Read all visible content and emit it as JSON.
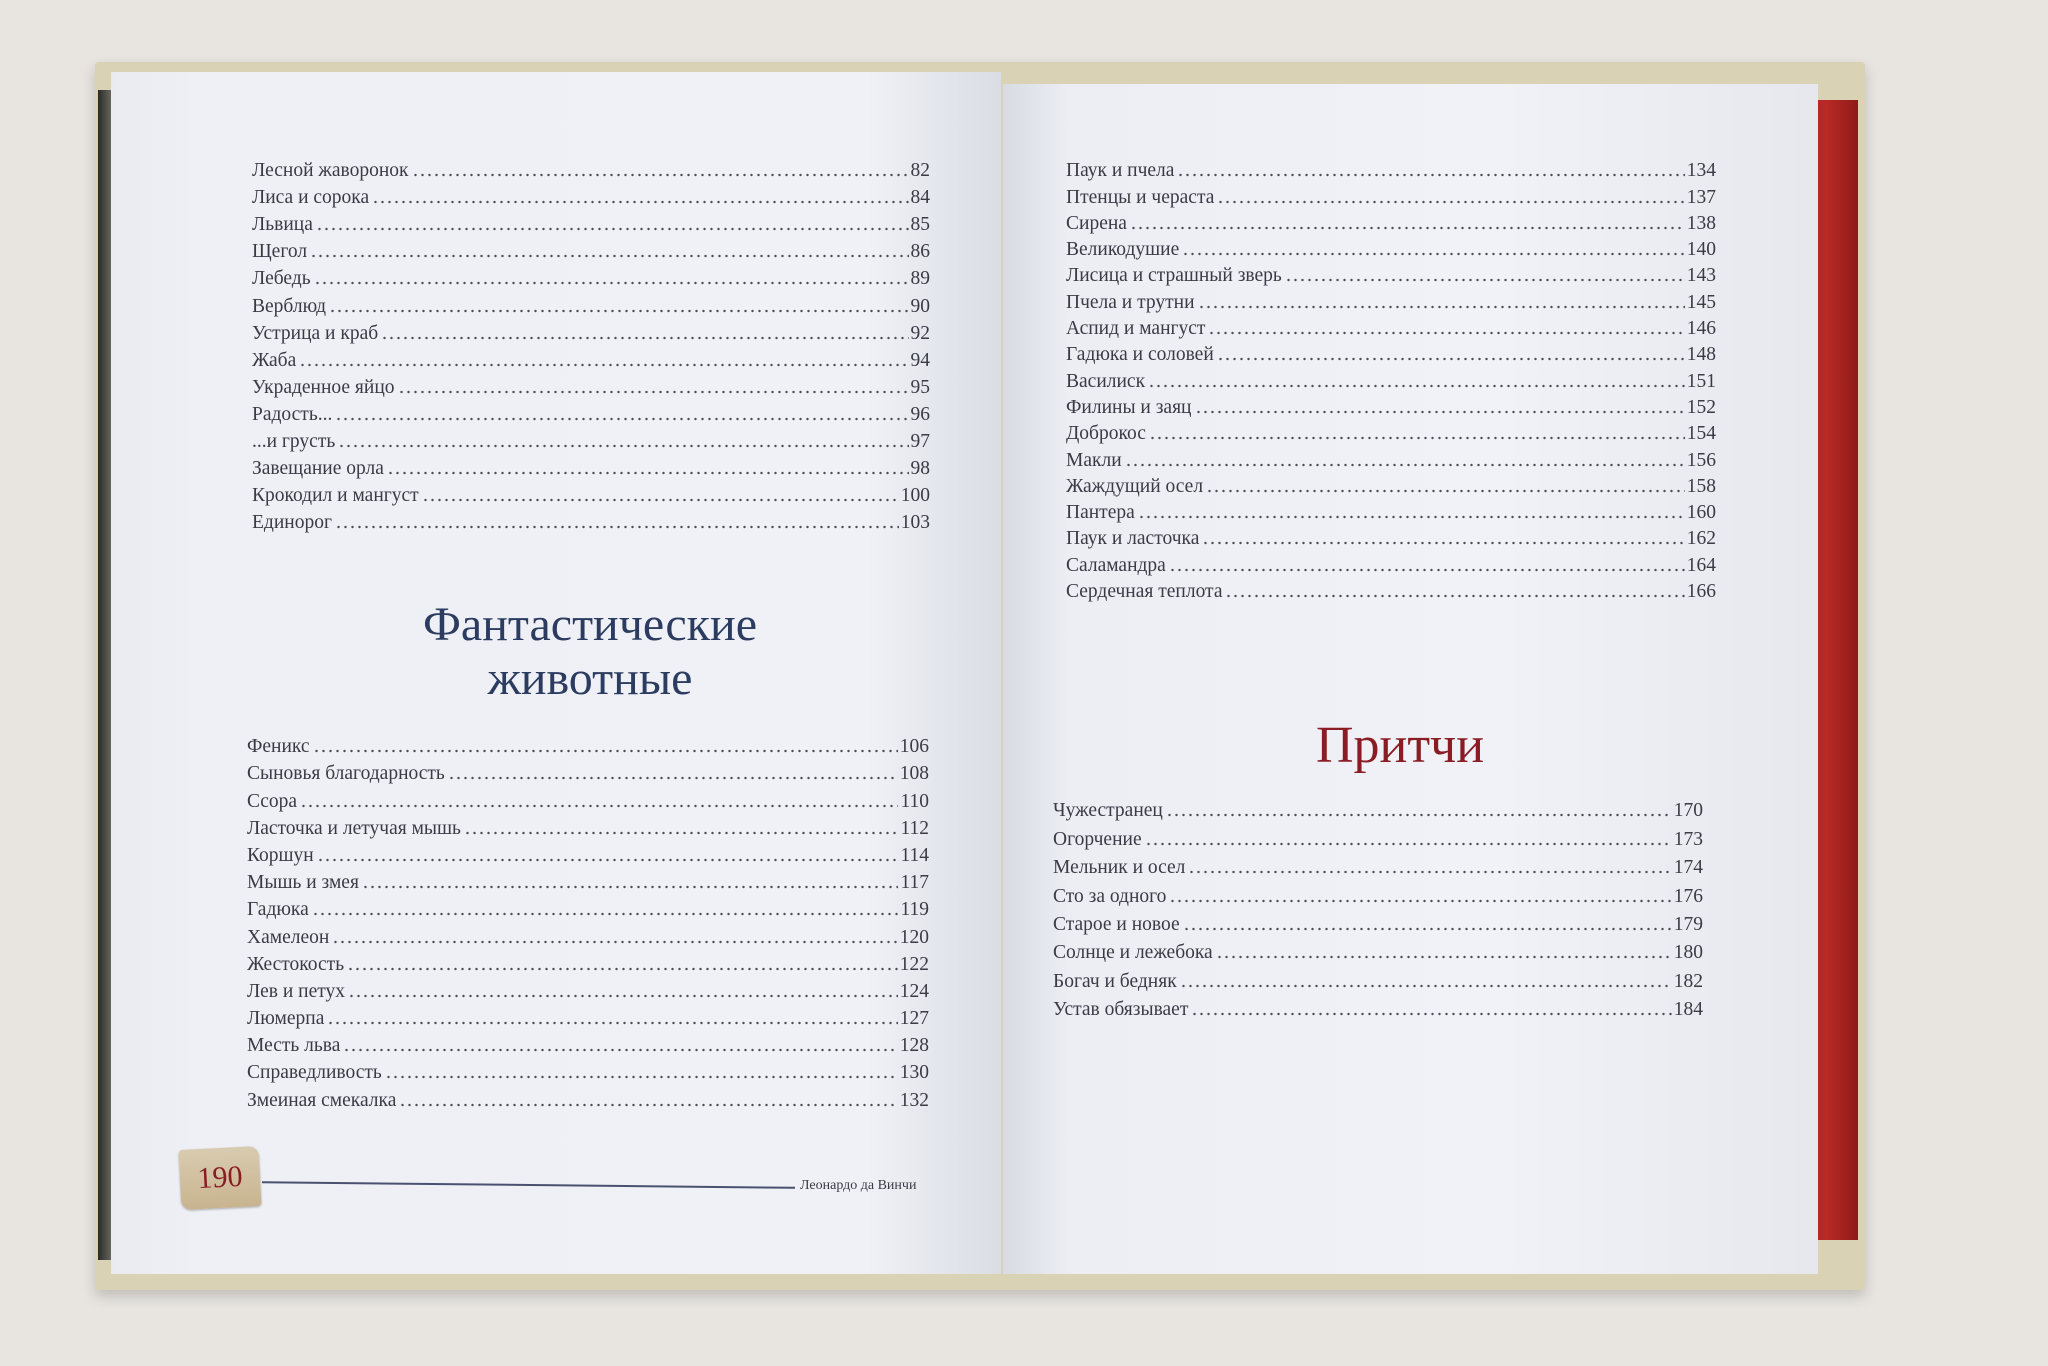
{
  "left_page": {
    "entries_top": [
      {
        "title": "Лесной жаворонок",
        "page": "82"
      },
      {
        "title": "Лиса и сорока",
        "page": "84"
      },
      {
        "title": "Львица",
        "page": "85"
      },
      {
        "title": "Щегол",
        "page": "86"
      },
      {
        "title": "Лебедь",
        "page": "89"
      },
      {
        "title": "Верблюд",
        "page": "90"
      },
      {
        "title": "Устрица и краб",
        "page": "92"
      },
      {
        "title": "Жаба",
        "page": "94"
      },
      {
        "title": "Украденное яйцо",
        "page": "95"
      },
      {
        "title": "Радость...",
        "page": "96"
      },
      {
        "title": "...и грусть",
        "page": "97"
      },
      {
        "title": "Завещание орла",
        "page": "98"
      },
      {
        "title": "Крокодил и мангуст",
        "page": "100"
      },
      {
        "title": "Единорог",
        "page": "103"
      }
    ],
    "section_heading_line1": "Фантастические",
    "section_heading_line2": "животные",
    "entries_section": [
      {
        "title": "Феникс",
        "page": "106"
      },
      {
        "title": "Сыновья благодарность",
        "page": "108"
      },
      {
        "title": "Ссора",
        "page": "110"
      },
      {
        "title": "Ласточка и летучая мышь",
        "page": "112"
      },
      {
        "title": "Коршун",
        "page": "114"
      },
      {
        "title": "Мышь и змея",
        "page": "117"
      },
      {
        "title": "Гадюка",
        "page": "119"
      },
      {
        "title": "Хамелеон",
        "page": "120"
      },
      {
        "title": "Жестокость",
        "page": "122"
      },
      {
        "title": "Лев и петух",
        "page": "124"
      },
      {
        "title": "Люмерпа",
        "page": "127"
      },
      {
        "title": "Месть льва",
        "page": "128"
      },
      {
        "title": "Справедливость",
        "page": "130"
      },
      {
        "title": "Змеиная смекалка",
        "page": "132"
      }
    ],
    "page_number": "190",
    "running_footer": "Леонардо да Винчи"
  },
  "right_page": {
    "entries_top": [
      {
        "title": "Паук и пчела",
        "page": "134"
      },
      {
        "title": "Птенцы и чераста",
        "page": "137"
      },
      {
        "title": "Сирена",
        "page": "138"
      },
      {
        "title": "Великодушие",
        "page": "140"
      },
      {
        "title": "Лисица и страшный зверь",
        "page": "143"
      },
      {
        "title": "Пчела и трутни",
        "page": "145"
      },
      {
        "title": "Аспид и мангуст",
        "page": "146"
      },
      {
        "title": "Гадюка и соловей",
        "page": "148"
      },
      {
        "title": "Василиск",
        "page": "151"
      },
      {
        "title": "Филины и заяц",
        "page": "152"
      },
      {
        "title": "Доброкос",
        "page": "154"
      },
      {
        "title": "Макли",
        "page": "156"
      },
      {
        "title": "Жаждущий осел",
        "page": "158"
      },
      {
        "title": "Пантера",
        "page": "160"
      },
      {
        "title": "Паук и ласточка",
        "page": "162"
      },
      {
        "title": "Саламандра",
        "page": "164"
      },
      {
        "title": "Сердечная теплота",
        "page": "166"
      }
    ],
    "section_heading": "Притчи",
    "entries_section": [
      {
        "title": "Чужестранец",
        "page": "170"
      },
      {
        "title": "Огорчение",
        "page": "173"
      },
      {
        "title": "Мельник и осел",
        "page": "174"
      },
      {
        "title": "Сто за одного",
        "page": "176"
      },
      {
        "title": "Старое и новое",
        "page": "179"
      },
      {
        "title": "Солнце и лежебока",
        "page": "180"
      },
      {
        "title": "Богач и бедняк",
        "page": "182"
      },
      {
        "title": "Устав обязывает",
        "page": "184"
      }
    ]
  },
  "colors": {
    "heading_blue": "#2c3c60",
    "heading_red": "#8a1c24",
    "endpaper_red": "#b82a25"
  }
}
